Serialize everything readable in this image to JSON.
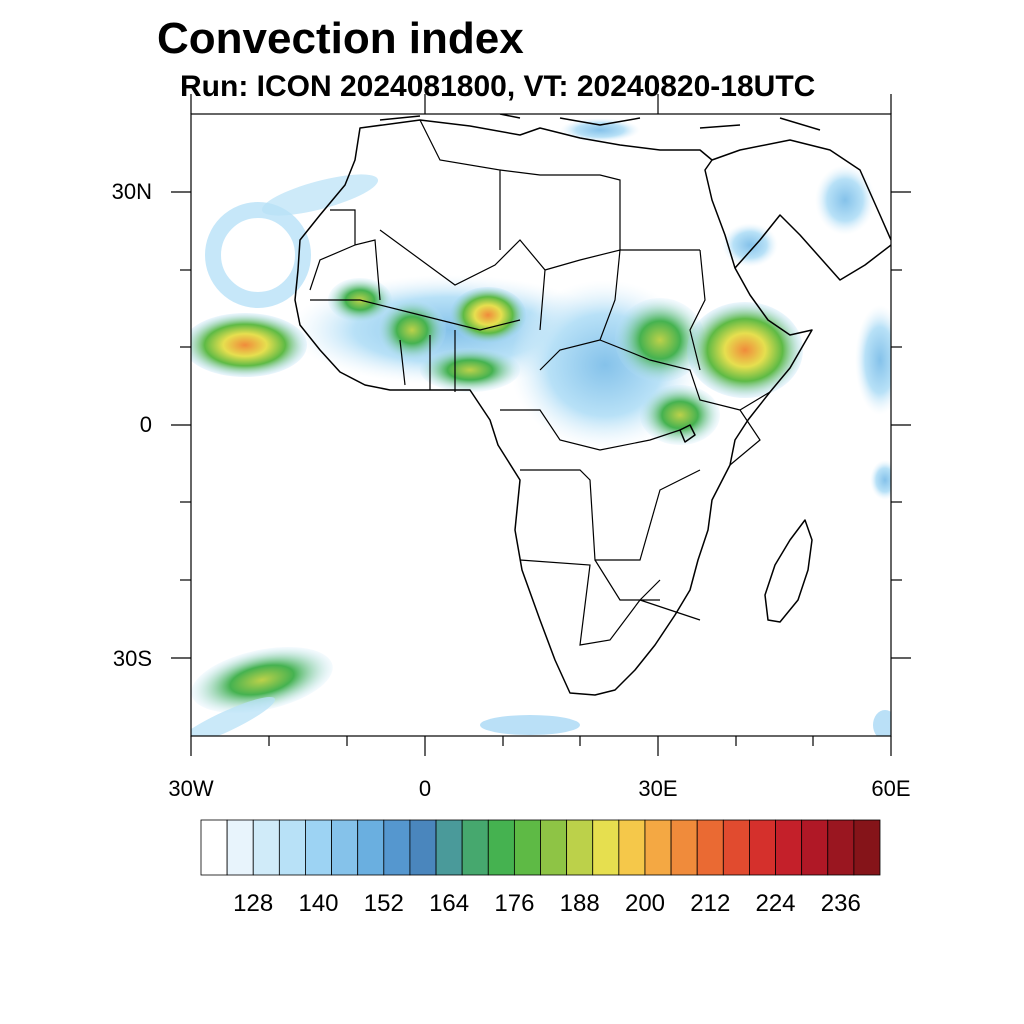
{
  "title": "Convection index",
  "subtitle": "Run: ICON 2024081800,  VT: 20240820-18UTC",
  "lat_labels": [
    "30N",
    "0",
    "30S"
  ],
  "lon_labels": [
    "30W",
    "0",
    "30E",
    "60E"
  ],
  "colorbar": {
    "tick_labels": [
      "128",
      "140",
      "152",
      "164",
      "176",
      "188",
      "200",
      "212",
      "224",
      "236"
    ],
    "colors": [
      "#ffffff",
      "#e8f4fc",
      "#d0ebf9",
      "#b8e1f7",
      "#9dd3f3",
      "#85c2ea",
      "#6aafe0",
      "#5597cf",
      "#4a86bd",
      "#4a9a9a",
      "#46a86e",
      "#45b250",
      "#5eba45",
      "#8ec445",
      "#bcd14a",
      "#e6df4f",
      "#f5c84a",
      "#f4a843",
      "#f08b3b",
      "#ea6a33",
      "#e14b2f",
      "#d5302c",
      "#c4202a",
      "#b01826",
      "#9a1620",
      "#851419"
    ]
  },
  "map": {
    "projection": "cylindrical equidistant",
    "lon_range": [
      -30,
      60
    ],
    "lat_range": [
      -40,
      40
    ]
  }
}
